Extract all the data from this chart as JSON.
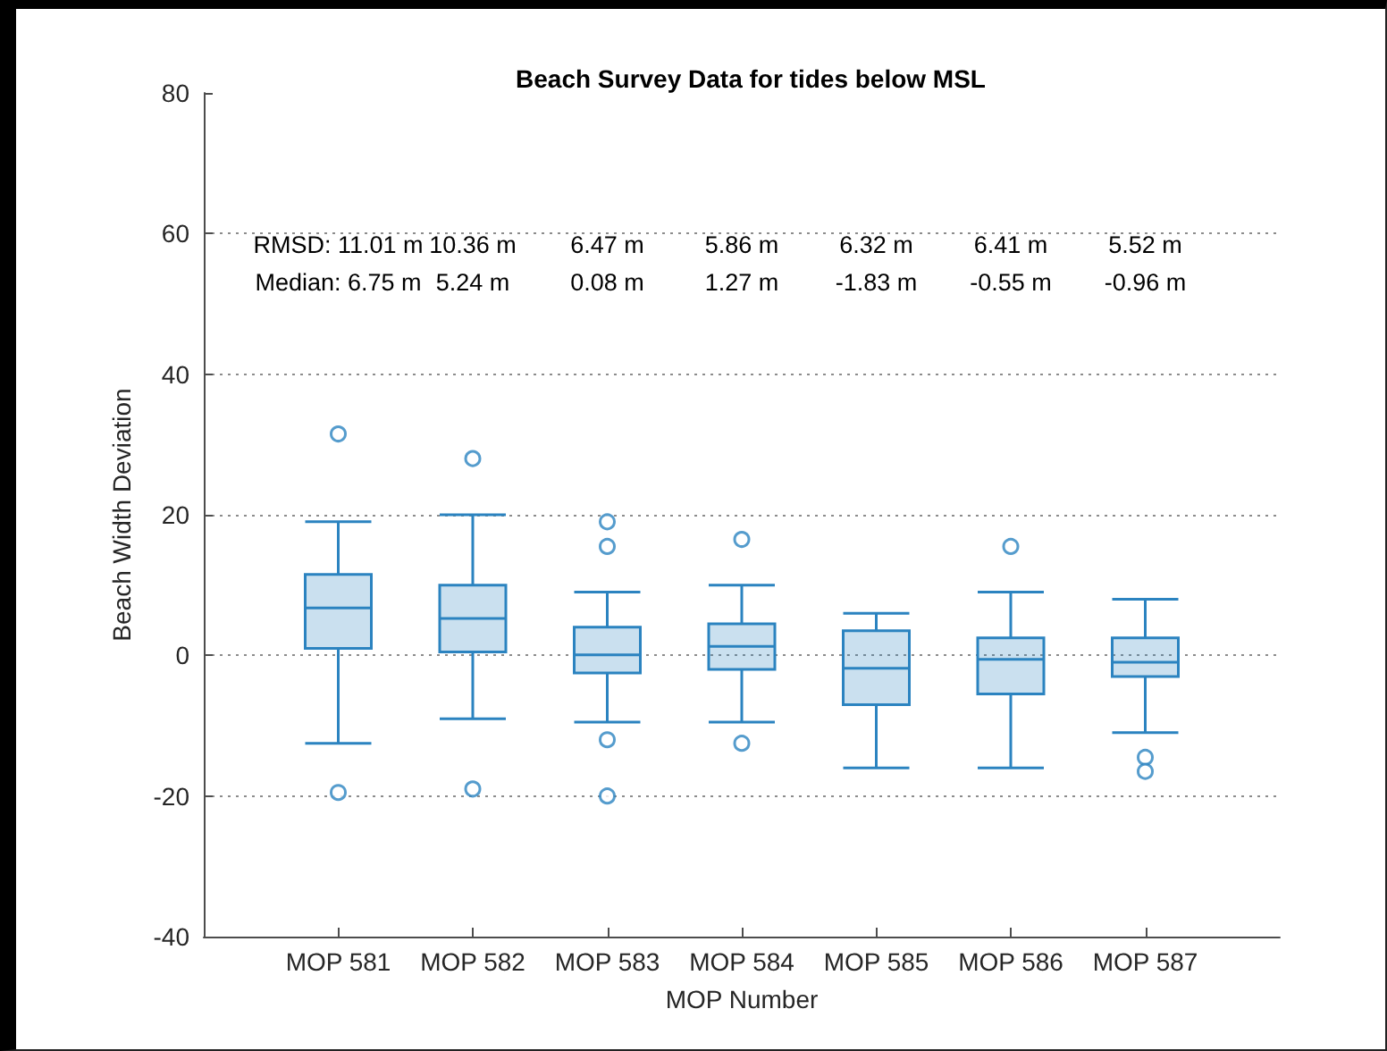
{
  "chart_data": {
    "type": "box",
    "title": "Beach Survey Data for tides below MSL",
    "xlabel": "MOP Number",
    "ylabel": "Beach Width Deviation",
    "categories": [
      "MOP 581",
      "MOP 582",
      "MOP 583",
      "MOP 584",
      "MOP 585",
      "MOP 586",
      "MOP 587"
    ],
    "color": "#2b83c0",
    "boxes": [
      {
        "low": -12.5,
        "q1": 1,
        "median": 6.75,
        "q3": 11.5,
        "high": 19,
        "outliers": [
          31.5,
          -19.5
        ]
      },
      {
        "low": -9,
        "q1": 0.5,
        "median": 5.24,
        "q3": 10,
        "high": 20,
        "outliers": [
          28,
          -19
        ]
      },
      {
        "low": -9.5,
        "q1": -2.5,
        "median": 0.08,
        "q3": 4,
        "high": 9,
        "outliers": [
          19,
          15.5,
          -12,
          -20
        ]
      },
      {
        "low": -9.5,
        "q1": -2,
        "median": 1.27,
        "q3": 4.5,
        "high": 10,
        "outliers": [
          16.5,
          -12.5
        ]
      },
      {
        "low": -16,
        "q1": -7,
        "median": -1.83,
        "q3": 3.5,
        "high": 6
      },
      {
        "low": -16,
        "q1": -5.5,
        "median": -0.55,
        "q3": 2.5,
        "high": 9,
        "outliers": [
          15.5
        ]
      },
      {
        "low": -11,
        "q1": -3,
        "median": -0.96,
        "q3": 2.5,
        "high": 8,
        "outliers": [
          -14.5,
          -16.5
        ]
      }
    ],
    "ylim": [
      -40,
      80
    ],
    "yticks": [
      -40,
      -20,
      0,
      20,
      40,
      60,
      80
    ],
    "grid": "y",
    "marker": "circle",
    "annotations": [
      "RMSD: 11.01 m",
      "10.36 m",
      "6.47 m",
      "5.86 m",
      "6.32 m",
      "6.41 m",
      "5.52 m",
      "Median: 6.75 m",
      "5.24 m",
      "0.08 m",
      "1.27 m",
      "-1.83 m",
      "-0.55 m",
      "-0.96 m"
    ]
  }
}
